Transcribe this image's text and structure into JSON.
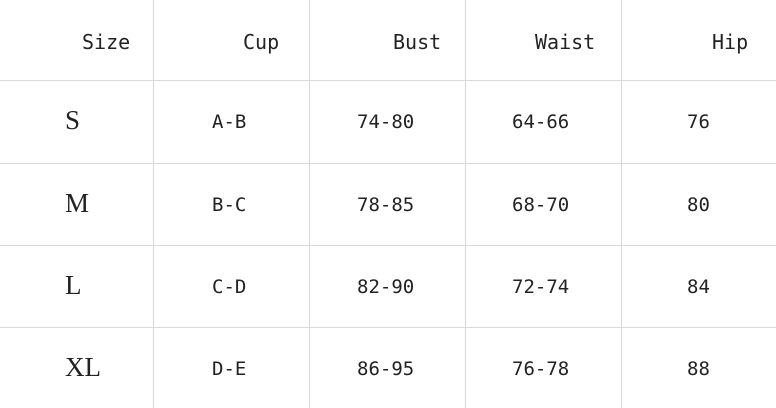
{
  "table": {
    "headers": [
      "Size",
      "Cup",
      "Bust",
      "Waist",
      "Hip"
    ],
    "rows": [
      [
        "S",
        "A-B",
        "74-80",
        "64-66",
        "76"
      ],
      [
        "M",
        "B-C",
        "78-85",
        "68-70",
        "80"
      ],
      [
        "L",
        "C-D",
        "82-90",
        "72-74",
        "84"
      ],
      [
        "XL",
        "D-E",
        "86-95",
        "76-78",
        "88"
      ]
    ]
  }
}
